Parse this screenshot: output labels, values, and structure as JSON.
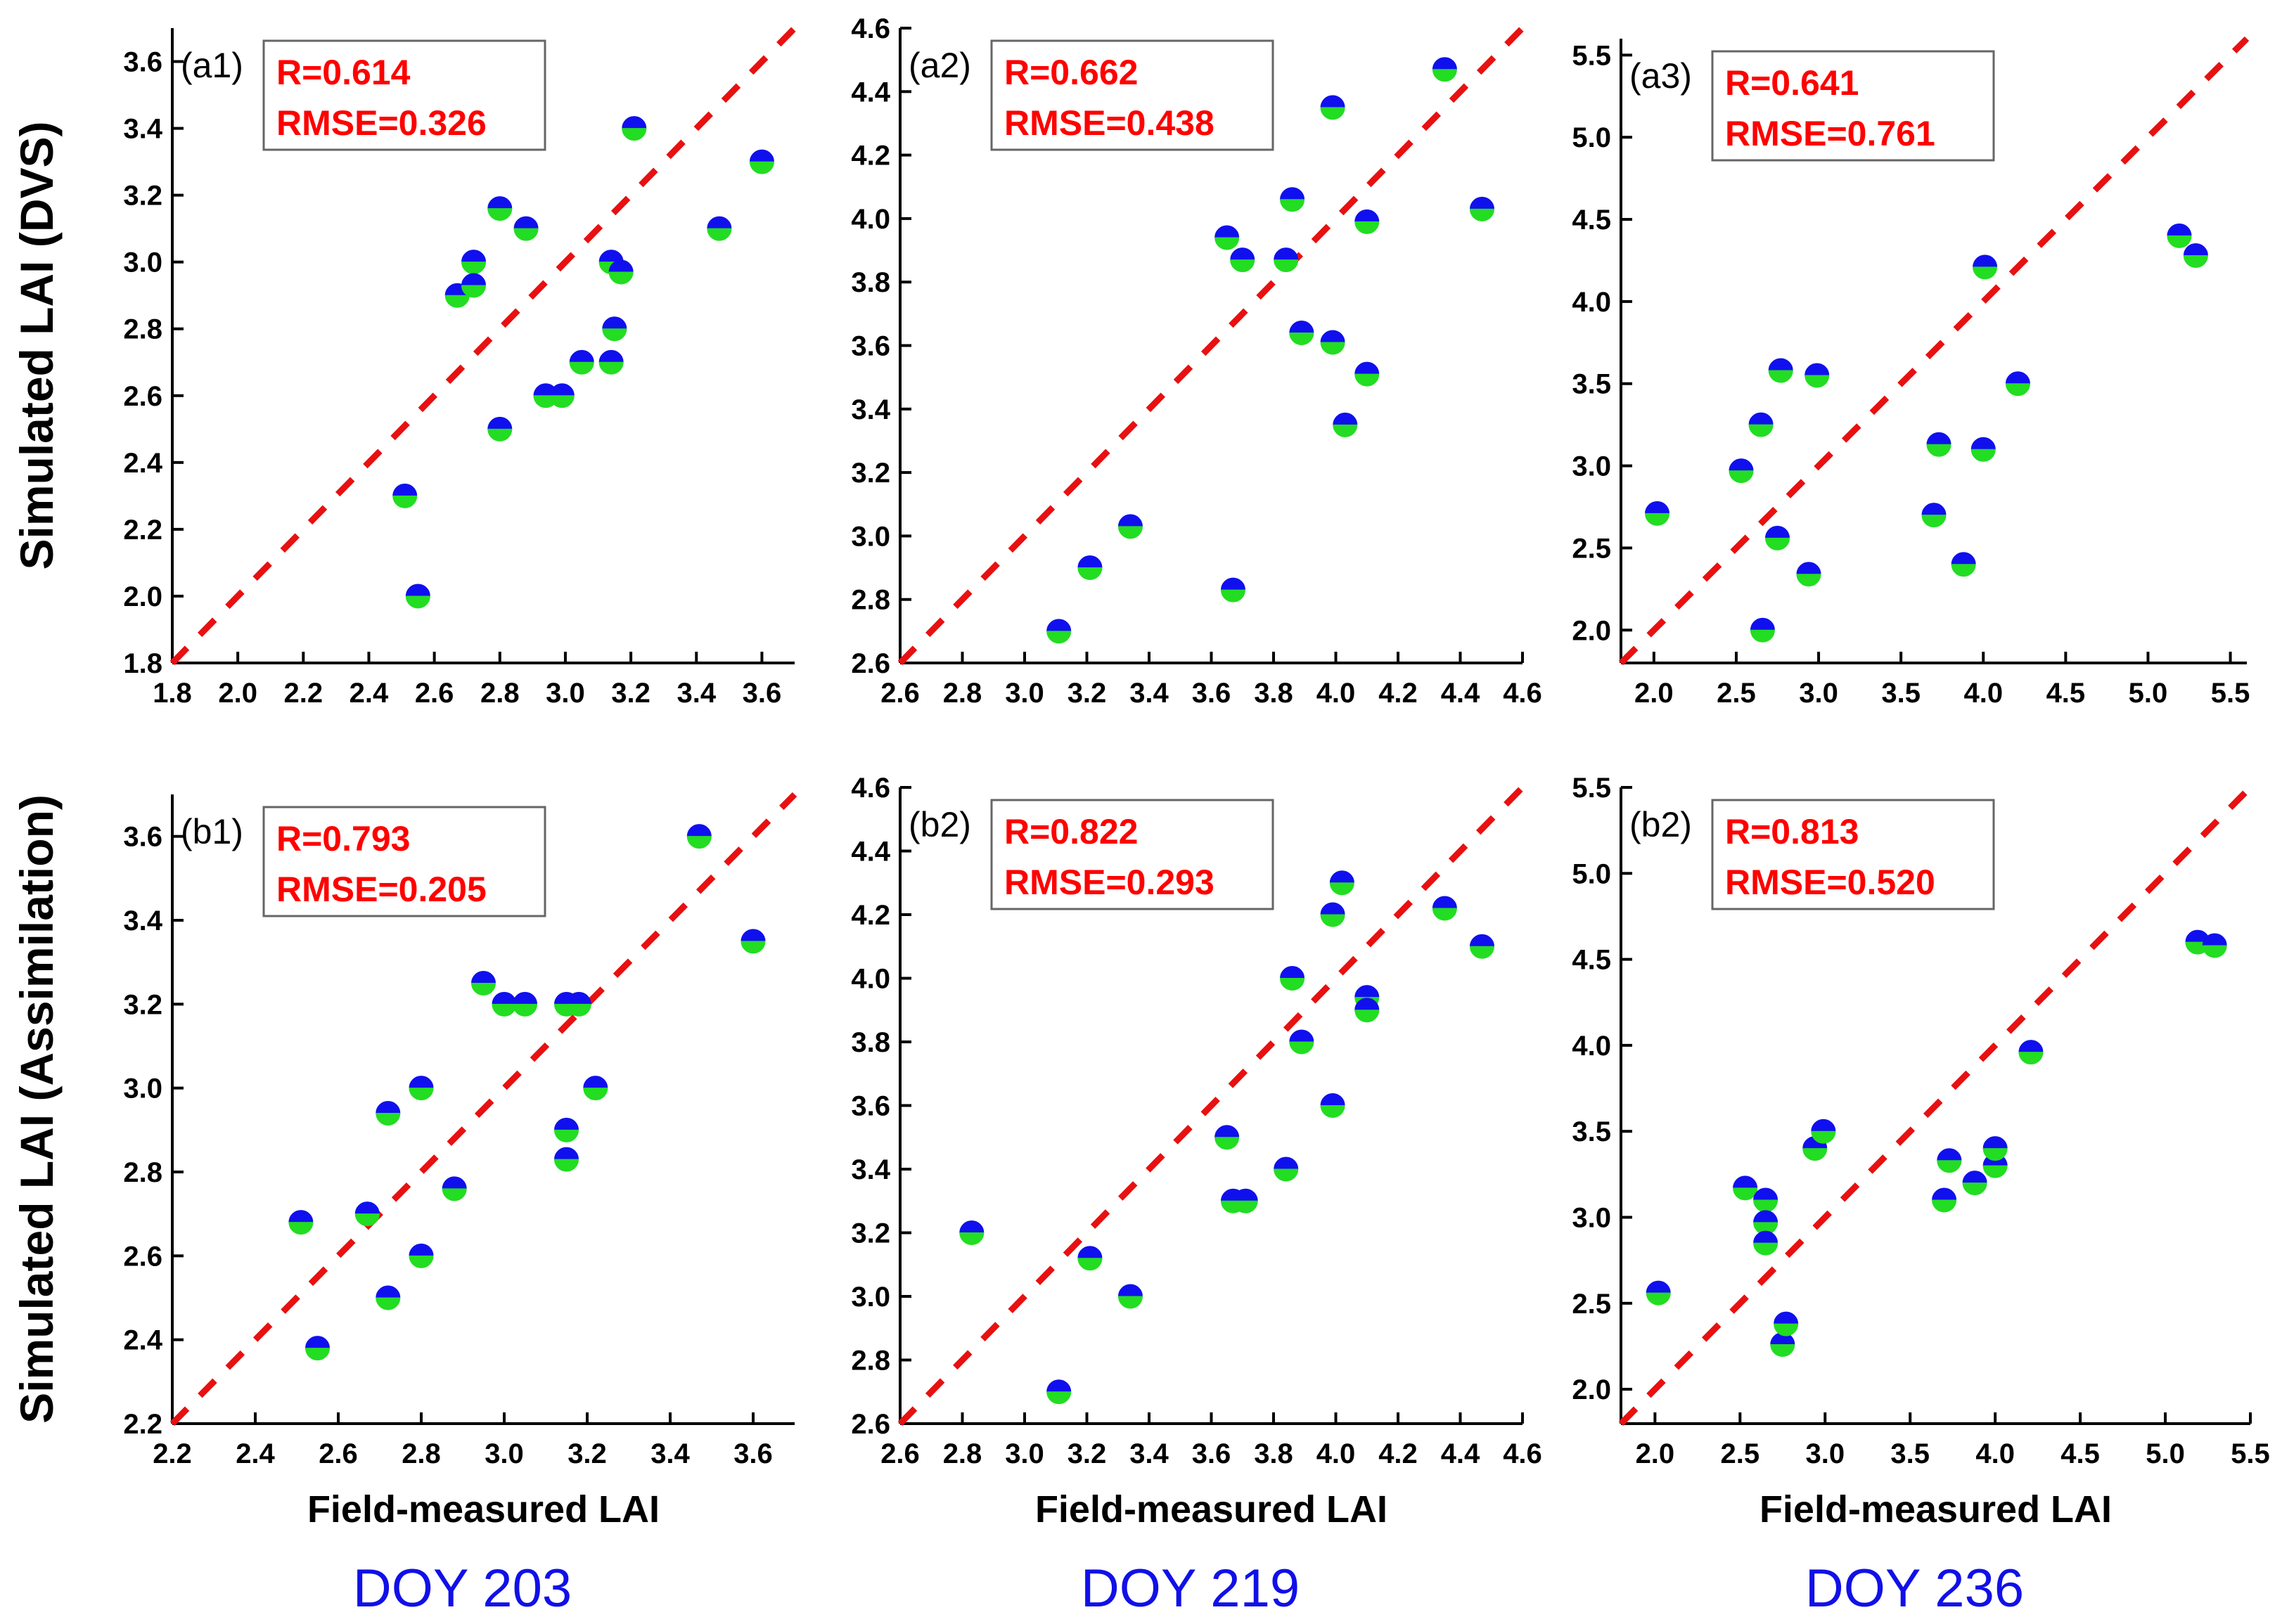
{
  "chart_data": [
    {
      "type": "scatter",
      "id": "a1",
      "panel_label": "(a1)",
      "r_text": "R=0.614",
      "rmse_text": "RMSE=0.326",
      "xlim": [
        1.8,
        3.7
      ],
      "ylim": [
        1.8,
        3.7
      ],
      "xticks": [
        "1.8",
        "2.0",
        "2.2",
        "2.4",
        "2.6",
        "2.8",
        "3.0",
        "3.2",
        "3.4",
        "3.6"
      ],
      "yticks": [
        "1.8",
        "2.0",
        "2.2",
        "2.4",
        "2.6",
        "2.8",
        "3.0",
        "3.2",
        "3.4",
        "3.6"
      ],
      "ylabel": "Simulated LAI (DVS)",
      "xlabel": "",
      "doy": "",
      "points": [
        [
          2.51,
          2.3
        ],
        [
          2.55,
          2.0
        ],
        [
          2.67,
          2.9
        ],
        [
          2.72,
          3.0
        ],
        [
          2.72,
          2.93
        ],
        [
          2.8,
          3.16
        ],
        [
          2.8,
          2.5
        ],
        [
          2.88,
          3.1
        ],
        [
          2.94,
          2.6
        ],
        [
          2.99,
          2.6
        ],
        [
          3.05,
          2.7
        ],
        [
          3.14,
          3.0
        ],
        [
          3.15,
          2.8
        ],
        [
          3.14,
          2.7
        ],
        [
          3.17,
          2.97
        ],
        [
          3.21,
          3.4
        ],
        [
          3.47,
          3.1
        ],
        [
          3.6,
          3.3
        ]
      ]
    },
    {
      "type": "scatter",
      "id": "a2",
      "panel_label": "(a2)",
      "r_text": "R=0.662",
      "rmse_text": "RMSE=0.438",
      "xlim": [
        2.6,
        4.6
      ],
      "ylim": [
        2.6,
        4.6
      ],
      "xticks": [
        "2.6",
        "2.8",
        "3.0",
        "3.2",
        "3.4",
        "3.6",
        "3.8",
        "4.0",
        "4.2",
        "4.4",
        "4.6"
      ],
      "yticks": [
        "2.6",
        "2.8",
        "3.0",
        "3.2",
        "3.4",
        "3.6",
        "3.8",
        "4.0",
        "4.2",
        "4.4",
        "4.6"
      ],
      "ylabel": "",
      "xlabel": "",
      "doy": "",
      "points": [
        [
          3.11,
          2.7
        ],
        [
          3.21,
          2.9
        ],
        [
          3.34,
          3.03
        ],
        [
          3.65,
          3.94
        ],
        [
          3.67,
          2.83
        ],
        [
          3.7,
          3.87
        ],
        [
          3.84,
          3.87
        ],
        [
          3.86,
          4.06
        ],
        [
          3.89,
          3.64
        ],
        [
          3.99,
          3.61
        ],
        [
          3.99,
          4.35
        ],
        [
          4.03,
          3.35
        ],
        [
          4.1,
          3.51
        ],
        [
          4.1,
          3.99
        ],
        [
          4.35,
          4.47
        ],
        [
          4.47,
          4.03
        ]
      ]
    },
    {
      "type": "scatter",
      "id": "a3",
      "panel_label": "(a3)",
      "r_text": "R=0.641",
      "rmse_text": "RMSE=0.761",
      "xlim": [
        1.8,
        5.6
      ],
      "ylim": [
        1.8,
        5.6
      ],
      "xticks": [
        "2.0",
        "2.5",
        "3.0",
        "3.5",
        "4.0",
        "4.5",
        "5.0",
        "5.5"
      ],
      "yticks": [
        "2.0",
        "2.5",
        "3.0",
        "3.5",
        "4.0",
        "4.5",
        "5.0",
        "5.5"
      ],
      "ylabel": "",
      "xlabel": "",
      "doy": "",
      "points": [
        [
          2.02,
          2.71
        ],
        [
          2.53,
          2.97
        ],
        [
          2.65,
          3.25
        ],
        [
          2.66,
          2.0
        ],
        [
          2.75,
          2.56
        ],
        [
          2.77,
          3.58
        ],
        [
          2.94,
          2.34
        ],
        [
          2.99,
          3.55
        ],
        [
          3.7,
          2.7
        ],
        [
          3.73,
          3.13
        ],
        [
          3.88,
          2.4
        ],
        [
          4.0,
          3.1
        ],
        [
          4.01,
          4.21
        ],
        [
          4.21,
          3.5
        ],
        [
          5.19,
          4.4
        ],
        [
          5.29,
          4.28
        ]
      ]
    },
    {
      "type": "scatter",
      "id": "b1",
      "panel_label": "(b1)",
      "r_text": "R=0.793",
      "rmse_text": "RMSE=0.205",
      "xlim": [
        2.2,
        3.7
      ],
      "ylim": [
        2.2,
        3.7
      ],
      "xticks": [
        "2.2",
        "2.4",
        "2.6",
        "2.8",
        "3.0",
        "3.2",
        "3.4",
        "3.6"
      ],
      "yticks": [
        "2.2",
        "2.4",
        "2.6",
        "2.8",
        "3.0",
        "3.2",
        "3.4",
        "3.6"
      ],
      "ylabel": "Simulated LAI (Assimilation)",
      "xlabel": "Field-measured LAI",
      "doy": "DOY 203",
      "points": [
        [
          2.51,
          2.68
        ],
        [
          2.55,
          2.38
        ],
        [
          2.67,
          2.7
        ],
        [
          2.72,
          2.94
        ],
        [
          2.72,
          2.5
        ],
        [
          2.8,
          3.0
        ],
        [
          2.8,
          2.6
        ],
        [
          2.88,
          2.76
        ],
        [
          2.95,
          3.25
        ],
        [
          3.0,
          3.2
        ],
        [
          3.05,
          3.2
        ],
        [
          3.15,
          3.2
        ],
        [
          3.18,
          3.2
        ],
        [
          3.15,
          2.9
        ],
        [
          3.15,
          2.83
        ],
        [
          3.22,
          3.0
        ],
        [
          3.47,
          3.6
        ],
        [
          3.6,
          3.35
        ]
      ]
    },
    {
      "type": "scatter",
      "id": "b2",
      "panel_label": "(b2)",
      "r_text": "R=0.822",
      "rmse_text": "RMSE=0.293",
      "xlim": [
        2.6,
        4.6
      ],
      "ylim": [
        2.6,
        4.6
      ],
      "xticks": [
        "2.6",
        "2.8",
        "3.0",
        "3.2",
        "3.4",
        "3.6",
        "3.8",
        "4.0",
        "4.2",
        "4.4",
        "4.6"
      ],
      "yticks": [
        "2.6",
        "2.8",
        "3.0",
        "3.2",
        "3.4",
        "3.6",
        "3.8",
        "4.0",
        "4.2",
        "4.4",
        "4.6"
      ],
      "ylabel": "",
      "xlabel": "Field-measured LAI",
      "doy": "DOY 219",
      "points": [
        [
          2.83,
          3.2
        ],
        [
          3.11,
          2.7
        ],
        [
          3.21,
          3.12
        ],
        [
          3.34,
          3.0
        ],
        [
          3.65,
          3.5
        ],
        [
          3.67,
          3.3
        ],
        [
          3.71,
          3.3
        ],
        [
          3.84,
          3.4
        ],
        [
          3.86,
          4.0
        ],
        [
          3.89,
          3.8
        ],
        [
          3.99,
          3.6
        ],
        [
          3.99,
          4.2
        ],
        [
          4.02,
          4.3
        ],
        [
          4.1,
          3.94
        ],
        [
          4.1,
          3.9
        ],
        [
          4.35,
          4.22
        ],
        [
          4.47,
          4.1
        ]
      ]
    },
    {
      "type": "scatter",
      "id": "b3",
      "panel_label": "(b2)",
      "r_text": "R=0.813",
      "rmse_text": "RMSE=0.520",
      "xlim": [
        1.8,
        5.5
      ],
      "ylim": [
        1.8,
        5.5
      ],
      "xticks": [
        "2.0",
        "2.5",
        "3.0",
        "3.5",
        "4.0",
        "4.5",
        "5.0",
        "5.5"
      ],
      "yticks": [
        "2.0",
        "2.5",
        "3.0",
        "3.5",
        "4.0",
        "4.5",
        "5.0",
        "5.5"
      ],
      "ylabel": "",
      "xlabel": "Field-measured LAI",
      "doy": "DOY 236",
      "points": [
        [
          2.02,
          2.56
        ],
        [
          2.53,
          3.17
        ],
        [
          2.65,
          3.1
        ],
        [
          2.65,
          2.97
        ],
        [
          2.65,
          2.85
        ],
        [
          2.75,
          2.26
        ],
        [
          2.77,
          2.38
        ],
        [
          2.94,
          3.4
        ],
        [
          2.99,
          3.5
        ],
        [
          3.7,
          3.1
        ],
        [
          3.73,
          3.33
        ],
        [
          3.88,
          3.2
        ],
        [
          4.0,
          3.3
        ],
        [
          4.0,
          3.4
        ],
        [
          4.21,
          3.96
        ],
        [
          5.19,
          4.6
        ],
        [
          5.29,
          4.58
        ]
      ]
    }
  ]
}
